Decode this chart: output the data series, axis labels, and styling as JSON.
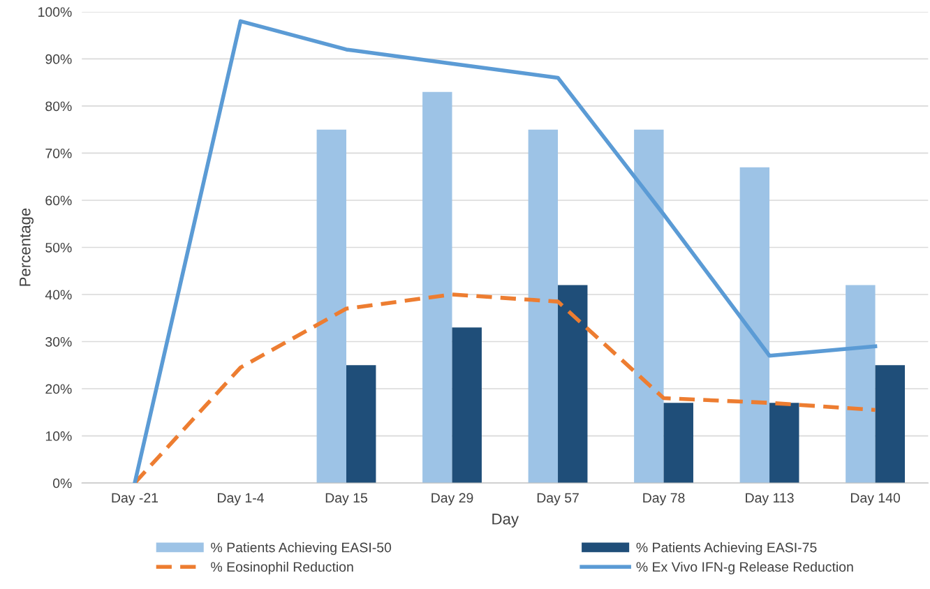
{
  "chart_data": {
    "type": "bar",
    "xlabel": "Day",
    "ylabel": "Percentage",
    "categories": [
      "Day -21",
      "Day 1-4",
      "Day 15",
      "Day 29",
      "Day 57",
      "Day 78",
      "Day 113",
      "Day 140"
    ],
    "series": [
      {
        "name": "% Patients Achieving EASI-50",
        "color": "#9dc3e6",
        "values": [
          null,
          null,
          75,
          83,
          75,
          75,
          67,
          42
        ]
      },
      {
        "name": "% Patients Achieving EASI-75",
        "color": "#1f4e79",
        "values": [
          null,
          null,
          25,
          33,
          42,
          17,
          17,
          25
        ]
      },
      {
        "name": "% Eosinophil Reduction",
        "type": "line",
        "line_style": "dashed",
        "color": "#ed7d31",
        "values": [
          0,
          24.5,
          37,
          40,
          38.5,
          18,
          17,
          15.5
        ]
      },
      {
        "name": "% Ex Vivo IFN-g Release Reduction",
        "type": "line",
        "line_style": "solid",
        "color": "#5b9bd5",
        "values": [
          0,
          98,
          92,
          89,
          86,
          57,
          27,
          29
        ]
      }
    ],
    "ylim": [
      0,
      100
    ],
    "yticks": [
      {
        "value": 0,
        "label": "0%"
      },
      {
        "value": 10,
        "label": "10%"
      },
      {
        "value": 20,
        "label": "20%"
      },
      {
        "value": 30,
        "label": "30%"
      },
      {
        "value": 40,
        "label": "40%"
      },
      {
        "value": 50,
        "label": "50%"
      },
      {
        "value": 60,
        "label": "60%"
      },
      {
        "value": 70,
        "label": "70%"
      },
      {
        "value": 80,
        "label": "80%"
      },
      {
        "value": 90,
        "label": "90%"
      },
      {
        "value": 100,
        "label": "100%"
      }
    ],
    "grid": "y",
    "legend": "bottom"
  }
}
